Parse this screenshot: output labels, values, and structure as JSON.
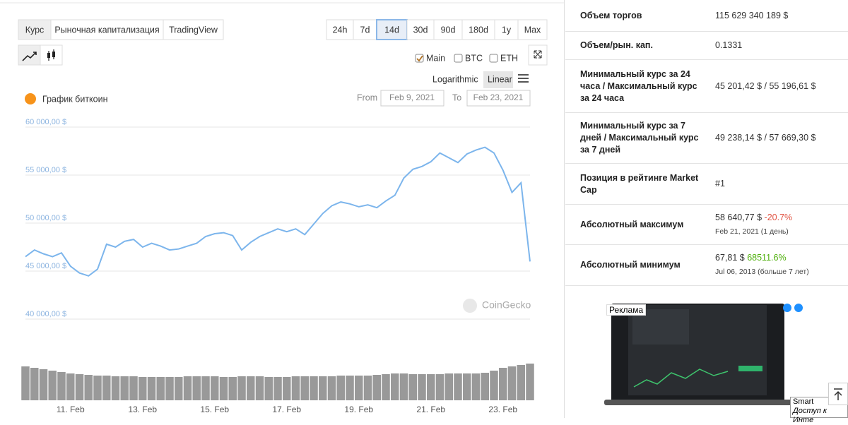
{
  "tabs": [
    "Курс",
    "Рыночная капитализация",
    "TradingView"
  ],
  "active_tab": "Курс",
  "ranges": [
    "24h",
    "7d",
    "14d",
    "30d",
    "90d",
    "180d",
    "1y",
    "Max"
  ],
  "active_range": "14d",
  "toggles": [
    {
      "label": "Main",
      "checked": true
    },
    {
      "label": "BTC",
      "checked": false
    },
    {
      "label": "ETH",
      "checked": false
    }
  ],
  "scales": [
    "Logarithmic",
    "Linear"
  ],
  "active_scale": "Linear",
  "chart_data": {
    "type": "line",
    "title": "График биткоин",
    "from_label": "From",
    "from": "Feb 9, 2021",
    "to_label": "To",
    "to": "Feb 23, 2021",
    "watermark": "CoinGecko",
    "xlim": [
      9.75,
      23.75
    ],
    "xticks": [
      {
        "value": 11,
        "label": "11. Feb"
      },
      {
        "value": 13,
        "label": "13. Feb"
      },
      {
        "value": 15,
        "label": "15. Feb"
      },
      {
        "value": 17,
        "label": "17. Feb"
      },
      {
        "value": 19,
        "label": "19. Feb"
      },
      {
        "value": 21,
        "label": "21. Feb"
      },
      {
        "value": 23,
        "label": "23. Feb"
      }
    ],
    "ylim": [
      37500,
      61000
    ],
    "yticks": [
      {
        "value": 40000,
        "label": "40 000,00 $"
      },
      {
        "value": 45000,
        "label": "45 000,00 $"
      },
      {
        "value": 50000,
        "label": "50 000,00 $"
      },
      {
        "value": 55000,
        "label": "55 000,00 $"
      },
      {
        "value": 60000,
        "label": "60 000,00 $"
      }
    ],
    "grid": true,
    "y2lim": [
      0,
      60
    ],
    "x": [
      9.75,
      10,
      10.25,
      10.5,
      10.75,
      11,
      11.25,
      11.5,
      11.75,
      12,
      12.25,
      12.5,
      12.75,
      13,
      13.25,
      13.5,
      13.75,
      14,
      14.25,
      14.5,
      14.75,
      15,
      15.25,
      15.5,
      15.75,
      16,
      16.25,
      16.5,
      16.75,
      17,
      17.25,
      17.5,
      17.75,
      18,
      18.25,
      18.5,
      18.75,
      19,
      19.25,
      19.5,
      19.75,
      20,
      20.25,
      20.5,
      20.75,
      21,
      21.25,
      21.5,
      21.75,
      22,
      22.25,
      22.5,
      22.75,
      23,
      23.25,
      23.5,
      23.75
    ],
    "series": [
      {
        "color": "#7cb5ec",
        "values": [
          46500,
          47200,
          46800,
          46500,
          46900,
          45500,
          44800,
          44500,
          45200,
          47800,
          47500,
          48100,
          48300,
          47500,
          47900,
          47600,
          47200,
          47300,
          47600,
          47900,
          48600,
          48900,
          49000,
          48700,
          47200,
          48000,
          48600,
          49000,
          49400,
          49100,
          49400,
          48800,
          49900,
          51000,
          51800,
          52200,
          52000,
          51700,
          51900,
          51600,
          52300,
          52900,
          54700,
          55600,
          55900,
          56400,
          57300,
          56800,
          56300,
          57200,
          57600,
          57900,
          57300,
          55500,
          53200,
          54200,
          46000
        ]
      },
      {
        "color": "#999999",
        "axis": "y2",
        "type": "bar",
        "values": [
          48,
          46,
          44,
          42,
          40,
          38,
          37,
          36,
          35,
          35,
          34,
          34,
          34,
          33,
          33,
          33,
          33,
          33,
          34,
          34,
          34,
          34,
          33,
          33,
          34,
          34,
          34,
          33,
          33,
          33,
          34,
          34,
          34,
          34,
          34,
          35,
          35,
          35,
          35,
          36,
          37,
          38,
          38,
          37,
          37,
          37,
          37,
          38,
          38,
          38,
          38,
          39,
          42,
          46,
          48,
          50,
          52
        ]
      }
    ]
  },
  "stats": [
    {
      "label": "Объем торгов",
      "value": "115 629 340 189 $"
    },
    {
      "label": "Объем/рын. кап.",
      "value": "0.1331"
    },
    {
      "label": "Минимальный курс за 24 часа / Максимальный курс за 24 часа",
      "value": "45 201,42 $ / 55 196,61 $"
    },
    {
      "label": "Минимальный курс за 7 дней / Максимальный курс за 7 дней",
      "value": "49 238,14 $ / 57 669,30 $"
    },
    {
      "label": "Позиция в рейтинге Market Cap",
      "value": "#1"
    },
    {
      "label": "Абсолютный максимум",
      "value": "58 640,77 $",
      "change": "-20.7%",
      "change_color": "#e15241",
      "note": "Feb 21, 2021 (1 день)"
    },
    {
      "label": "Абсолютный минимум",
      "value": "67,81 $",
      "change": "68511.6%",
      "change_color": "#4eaf0a",
      "note": "Jul 06, 2013 (больше 7 лет)"
    }
  ],
  "ad": {
    "label": "Реклама",
    "brand": "Smart",
    "tagline": "Доступ к Инте"
  }
}
